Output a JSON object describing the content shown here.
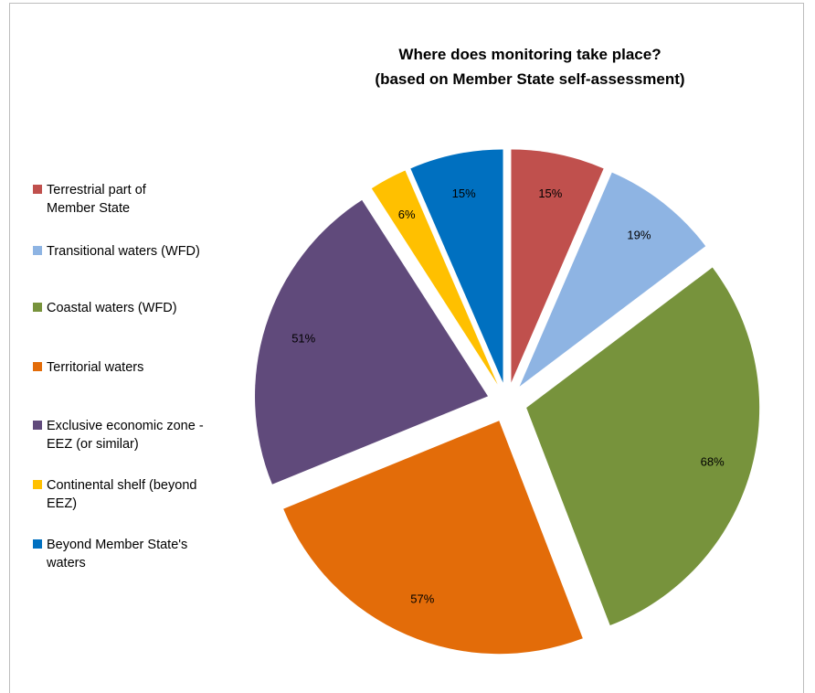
{
  "chart_data": {
    "type": "pie",
    "title": [
      "Where does monitoring take place?",
      "(based on Member State self-assessment)"
    ],
    "categories": [
      "Terrestrial part of Member State",
      "Transitional waters (WFD)",
      "Coastal waters (WFD)",
      "Territorial waters",
      "Exclusive economic zone - EEZ (or similar)",
      "Continental shelf (beyond EEZ)",
      "Beyond Member State's waters"
    ],
    "legend_lines": [
      [
        "Terrestrial part of",
        "Member State"
      ],
      [
        "Transitional waters (WFD)"
      ],
      [
        "Coastal waters (WFD)"
      ],
      [
        "Territorial waters"
      ],
      [
        "Exclusive economic zone -",
        "EEZ (or similar)"
      ],
      [
        "Continental shelf (beyond",
        "EEZ)"
      ],
      [
        "Beyond Member State's",
        "waters"
      ]
    ],
    "values": [
      15,
      19,
      68,
      57,
      51,
      6,
      15
    ],
    "data_labels": [
      "15%",
      "19%",
      "68%",
      "57%",
      "51%",
      "6%",
      "15%"
    ],
    "colors": [
      "#C0504D",
      "#8EB4E3",
      "#77933C",
      "#E36C09",
      "#604A7B",
      "#FFC000",
      "#0070C0"
    ],
    "legend_placement": "left",
    "exploded": true
  }
}
